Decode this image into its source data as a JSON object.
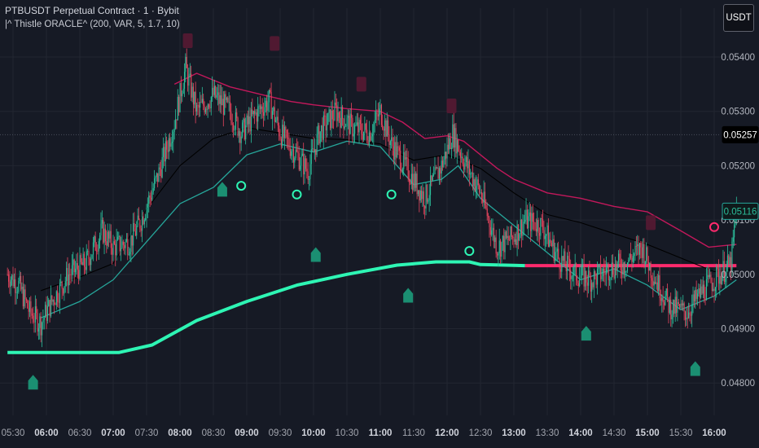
{
  "header": {
    "title": "PTBUSDT Perpetual Contract · 1 · Bybit",
    "indicator": "|^ Thistle ORACLE^ (200, VAR, 5, 1.7, 10)",
    "currency": "USDT"
  },
  "colors": {
    "background": "#161a25",
    "grid": "#222631",
    "candle_up": "#2cbf9c",
    "candle_down": "#e8455e",
    "trend_band": "#2ef5b4",
    "resistance_line": "#ff2a6d",
    "upper_band": "#c2185b",
    "lower_band": "#26a69a",
    "mid_line": "#000000",
    "price_box": "#000000",
    "last_price_box": "#26a69a"
  },
  "chart_data": {
    "type": "candlestick",
    "x_ticks": [
      "05:30",
      "06:00",
      "06:30",
      "07:00",
      "07:30",
      "08:00",
      "08:30",
      "09:00",
      "09:30",
      "10:00",
      "10:30",
      "11:00",
      "11:30",
      "12:00",
      "12:30",
      "13:00",
      "13:30",
      "14:00",
      "14:30",
      "15:00",
      "15:30",
      "16:00"
    ],
    "x_ticks_bold": [
      "06:00",
      "07:00",
      "08:00",
      "09:00",
      "10:00",
      "11:00",
      "12:00",
      "13:00",
      "14:00",
      "15:00",
      "16:00"
    ],
    "y_ticks": [
      "0.05400",
      "0.05300",
      "0.05200",
      "0.05100",
      "0.05000",
      "0.04900",
      "0.04800"
    ],
    "ylim": [
      0.04745,
      0.05475
    ],
    "xlim": [
      "05:25",
      "16:25"
    ],
    "current_price": "0.05257",
    "last_price": "0.05116",
    "close_path": [
      [
        "05:25",
        0.05
      ],
      [
        "05:35",
        0.0498
      ],
      [
        "05:45",
        0.0493
      ],
      [
        "05:55",
        0.0491
      ],
      [
        "06:05",
        0.0495
      ],
      [
        "06:20",
        0.05
      ],
      [
        "06:35",
        0.0502
      ],
      [
        "06:50",
        0.0508
      ],
      [
        "07:00",
        0.0505
      ],
      [
        "07:15",
        0.0506
      ],
      [
        "07:25",
        0.051
      ],
      [
        "07:40",
        0.0518
      ],
      [
        "07:55",
        0.0528
      ],
      [
        "08:05",
        0.0538
      ],
      [
        "08:15",
        0.053
      ],
      [
        "08:30",
        0.0533
      ],
      [
        "08:45",
        0.053
      ],
      [
        "08:55",
        0.0526
      ],
      [
        "09:10",
        0.053
      ],
      [
        "09:20",
        0.0532
      ],
      [
        "09:30",
        0.0526
      ],
      [
        "09:45",
        0.0522
      ],
      [
        "09:55",
        0.0519
      ],
      [
        "10:05",
        0.0526
      ],
      [
        "10:20",
        0.053
      ],
      [
        "10:35",
        0.0527
      ],
      [
        "10:50",
        0.0526
      ],
      [
        "11:00",
        0.053
      ],
      [
        "11:10",
        0.0524
      ],
      [
        "11:25",
        0.0519
      ],
      [
        "11:40",
        0.0514
      ],
      [
        "11:55",
        0.052
      ],
      [
        "12:05",
        0.0526
      ],
      [
        "12:15",
        0.0521
      ],
      [
        "12:30",
        0.0515
      ],
      [
        "12:45",
        0.0505
      ],
      [
        "13:00",
        0.0507
      ],
      [
        "13:10",
        0.051
      ],
      [
        "13:25",
        0.0509
      ],
      [
        "13:40",
        0.0503
      ],
      [
        "13:55",
        0.05
      ],
      [
        "14:10",
        0.0499
      ],
      [
        "14:25",
        0.0501
      ],
      [
        "14:40",
        0.0502
      ],
      [
        "14:55",
        0.0505
      ],
      [
        "15:05",
        0.05
      ],
      [
        "15:20",
        0.0494
      ],
      [
        "15:35",
        0.0493
      ],
      [
        "15:50",
        0.0497
      ],
      [
        "16:05",
        0.05
      ],
      [
        "16:15",
        0.0502
      ],
      [
        "16:20",
        0.05116
      ]
    ],
    "series": [
      {
        "role": "trend",
        "color": "#2ef5b4",
        "points": [
          [
            "05:25",
            0.04856
          ],
          [
            "07:05",
            0.04856
          ],
          [
            "07:35",
            0.0487
          ],
          [
            "08:15",
            0.04915
          ],
          [
            "09:00",
            0.0495
          ],
          [
            "09:45",
            0.0498
          ],
          [
            "10:30",
            0.05
          ],
          [
            "11:15",
            0.05017
          ],
          [
            "11:50",
            0.05023
          ],
          [
            "12:20",
            0.05023
          ],
          [
            "12:30",
            0.05018
          ],
          [
            "13:10",
            0.05016
          ]
        ]
      },
      {
        "role": "resistance",
        "color": "#ff2a6d",
        "points": [
          [
            "13:10",
            0.05016
          ],
          [
            "16:20",
            0.05016
          ]
        ]
      },
      {
        "role": "upper",
        "color": "#c2185b",
        "points": [
          [
            "07:55",
            0.0535
          ],
          [
            "08:15",
            0.0537
          ],
          [
            "08:45",
            0.05345
          ],
          [
            "09:15",
            0.0533
          ],
          [
            "09:40",
            0.05318
          ],
          [
            "10:00",
            0.05312
          ],
          [
            "10:30",
            0.05305
          ],
          [
            "11:00",
            0.053
          ],
          [
            "11:20",
            0.0528
          ],
          [
            "11:40",
            0.0525
          ],
          [
            "12:00",
            0.05255
          ],
          [
            "12:15",
            0.05245
          ],
          [
            "12:30",
            0.0522
          ],
          [
            "12:45",
            0.05195
          ],
          [
            "13:00",
            0.05175
          ],
          [
            "13:30",
            0.0515
          ],
          [
            "14:00",
            0.0514
          ],
          [
            "14:30",
            0.05125
          ],
          [
            "15:00",
            0.05115
          ],
          [
            "15:30",
            0.0508
          ],
          [
            "15:55",
            0.0505
          ],
          [
            "16:20",
            0.05055
          ]
        ]
      },
      {
        "role": "mid",
        "color": "#000000",
        "points": [
          [
            "05:55",
            0.0497
          ],
          [
            "06:30",
            0.04995
          ],
          [
            "07:00",
            0.0502
          ],
          [
            "07:30",
            0.0512
          ],
          [
            "08:00",
            0.052
          ],
          [
            "08:30",
            0.0525
          ],
          [
            "09:00",
            0.0527
          ],
          [
            "09:30",
            0.0526
          ],
          [
            "10:00",
            0.0525
          ],
          [
            "10:30",
            0.05248
          ],
          [
            "11:00",
            0.0524
          ],
          [
            "11:30",
            0.0521
          ],
          [
            "12:00",
            0.0522
          ],
          [
            "12:30",
            0.05195
          ],
          [
            "13:00",
            0.0515
          ],
          [
            "13:30",
            0.0511
          ],
          [
            "14:00",
            0.05095
          ],
          [
            "14:30",
            0.05075
          ],
          [
            "15:00",
            0.05055
          ],
          [
            "15:30",
            0.0503
          ],
          [
            "16:00",
            0.05005
          ],
          [
            "16:20",
            0.0501
          ]
        ]
      },
      {
        "role": "lower",
        "color": "#26a69a",
        "points": [
          [
            "05:55",
            0.0492
          ],
          [
            "06:30",
            0.0495
          ],
          [
            "07:00",
            0.0499
          ],
          [
            "07:30",
            0.0506
          ],
          [
            "08:00",
            0.0513
          ],
          [
            "08:30",
            0.0516
          ],
          [
            "09:00",
            0.0522
          ],
          [
            "09:30",
            0.0524
          ],
          [
            "10:00",
            0.05225
          ],
          [
            "10:30",
            0.05245
          ],
          [
            "11:00",
            0.05235
          ],
          [
            "11:30",
            0.05165
          ],
          [
            "11:55",
            0.05175
          ],
          [
            "12:10",
            0.052
          ],
          [
            "12:30",
            0.0514
          ],
          [
            "13:00",
            0.0509
          ],
          [
            "13:30",
            0.0504
          ],
          [
            "14:00",
            0.0499
          ],
          [
            "14:30",
            0.0501
          ],
          [
            "15:00",
            0.0498
          ],
          [
            "15:30",
            0.04935
          ],
          [
            "16:00",
            0.0496
          ],
          [
            "16:20",
            0.0499
          ]
        ]
      }
    ],
    "buy_signals": [
      [
        "05:48",
        0.04815
      ],
      [
        "08:38",
        0.0517
      ],
      [
        "10:02",
        0.0505
      ],
      [
        "11:25",
        0.04975
      ],
      [
        "14:05",
        0.04905
      ],
      [
        "15:43",
        0.0484
      ]
    ],
    "sell_signals": [
      [
        "08:07",
        0.0543
      ],
      [
        "09:25",
        0.05425
      ],
      [
        "10:43",
        0.0535
      ],
      [
        "12:04",
        0.0531
      ],
      [
        "15:03",
        0.05095
      ]
    ],
    "buy_circles": [
      [
        "08:55",
        0.05163
      ],
      [
        "09:45",
        0.05147
      ],
      [
        "11:10",
        0.05147
      ],
      [
        "12:20",
        0.05043
      ]
    ],
    "sell_circles": [
      [
        "16:00",
        0.05087
      ]
    ]
  }
}
